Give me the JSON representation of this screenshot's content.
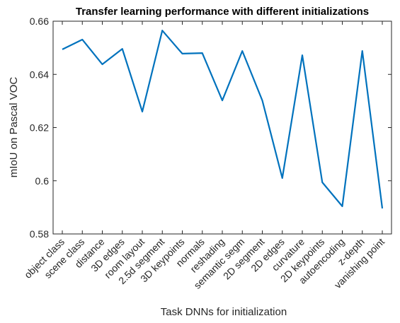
{
  "chart_data": {
    "type": "line",
    "title": "Transfer learning performance with different initializations",
    "x_label": "Task DNNs for initialization",
    "y_label": "mIoU on Pascal VOC",
    "categories": [
      "object class",
      "scene class",
      "distance",
      "3D edges",
      "room layout",
      "2.5d segment",
      "3D keypoints",
      "normals",
      "reshading",
      "semantic segm",
      "2D segment",
      "2D edges",
      "curvature",
      "2D keypoints",
      "autoencoding",
      "z-depth",
      "vanishing point"
    ],
    "series": [
      {
        "name": "mIoU",
        "color": "#0072bd",
        "values": [
          0.6494,
          0.6531,
          0.6438,
          0.6496,
          0.626,
          0.6565,
          0.6478,
          0.648,
          0.6302,
          0.6488,
          0.6302,
          0.601,
          0.6472,
          0.5994,
          0.5904,
          0.6488,
          0.5896
        ]
      }
    ],
    "ylim": [
      0.58,
      0.66
    ],
    "yticks": [
      0.58,
      0.6,
      0.62,
      0.64,
      0.66
    ]
  }
}
